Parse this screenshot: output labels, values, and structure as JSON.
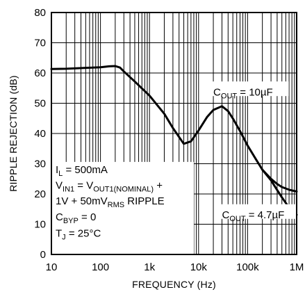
{
  "chart_data": {
    "type": "line",
    "xlabel": "FREQUENCY (Hz)",
    "ylabel": "RIPPLE REJECTION (dB)",
    "xscale": "log",
    "xlim": [
      10,
      1000000
    ],
    "ylim": [
      0,
      80
    ],
    "grid": true,
    "x_ticks": [
      {
        "value": 10,
        "label": "10"
      },
      {
        "value": 100,
        "label": "100"
      },
      {
        "value": 1000,
        "label": "1k"
      },
      {
        "value": 10000,
        "label": "10k"
      },
      {
        "value": 100000,
        "label": "100k"
      },
      {
        "value": 1000000,
        "label": "1M"
      }
    ],
    "y_ticks": [
      {
        "value": 0,
        "label": "0"
      },
      {
        "value": 10,
        "label": "10"
      },
      {
        "value": 20,
        "label": "20"
      },
      {
        "value": 30,
        "label": "30"
      },
      {
        "value": 40,
        "label": "40"
      },
      {
        "value": 50,
        "label": "50"
      },
      {
        "value": 60,
        "label": "60"
      },
      {
        "value": 70,
        "label": "70"
      },
      {
        "value": 80,
        "label": "80"
      }
    ],
    "shared_x": [
      10,
      20,
      50,
      100,
      150,
      200,
      250,
      300,
      500,
      1000,
      2000,
      3000,
      5000,
      7000,
      10000,
      15000,
      20000,
      30000,
      40000,
      50000,
      70000,
      100000,
      150000,
      200000
    ],
    "shared_y": [
      61.3,
      61.4,
      61.7,
      61.9,
      62.2,
      62.3,
      61.8,
      60.5,
      57.2,
      52.5,
      46.5,
      41.8,
      36.6,
      37.4,
      41.0,
      45.5,
      47.8,
      49.0,
      47.4,
      45.0,
      40.8,
      36.0,
      31.3,
      28.0
    ],
    "series": [
      {
        "name": "C_OUT = 10µF",
        "label": {
          "main": "C",
          "sub": "OUT",
          "rest": " = 10µF"
        },
        "x": [
          300000,
          400000,
          500000,
          700000,
          1000000
        ],
        "y": [
          25.0,
          23.3,
          22.3,
          21.4,
          20.8
        ]
      },
      {
        "name": "C_OUT = 4.7µF",
        "label": {
          "main": "C",
          "sub": "OUT",
          "rest": " = 4.7µF"
        },
        "x": [
          300000,
          400000,
          500000,
          700000,
          1000000
        ],
        "y": [
          24.5,
          21.3,
          18.9,
          15.5,
          13.1
        ]
      }
    ],
    "conditions": [
      {
        "main": "I",
        "sub": "L",
        "rest": " = 500mA"
      },
      {
        "main": "V",
        "sub": "IN1",
        "rest": " = V",
        "sub2": "OUT1(NOMINAL)",
        "rest2": " +"
      },
      {
        "main": "1V + 50mV",
        "sub": "RMS",
        "rest": " RIPPLE"
      },
      {
        "main": "C",
        "sub": "BYP",
        "rest": " = 0"
      },
      {
        "main": "T",
        "sub": "J",
        "rest": " = 25°C"
      }
    ]
  }
}
